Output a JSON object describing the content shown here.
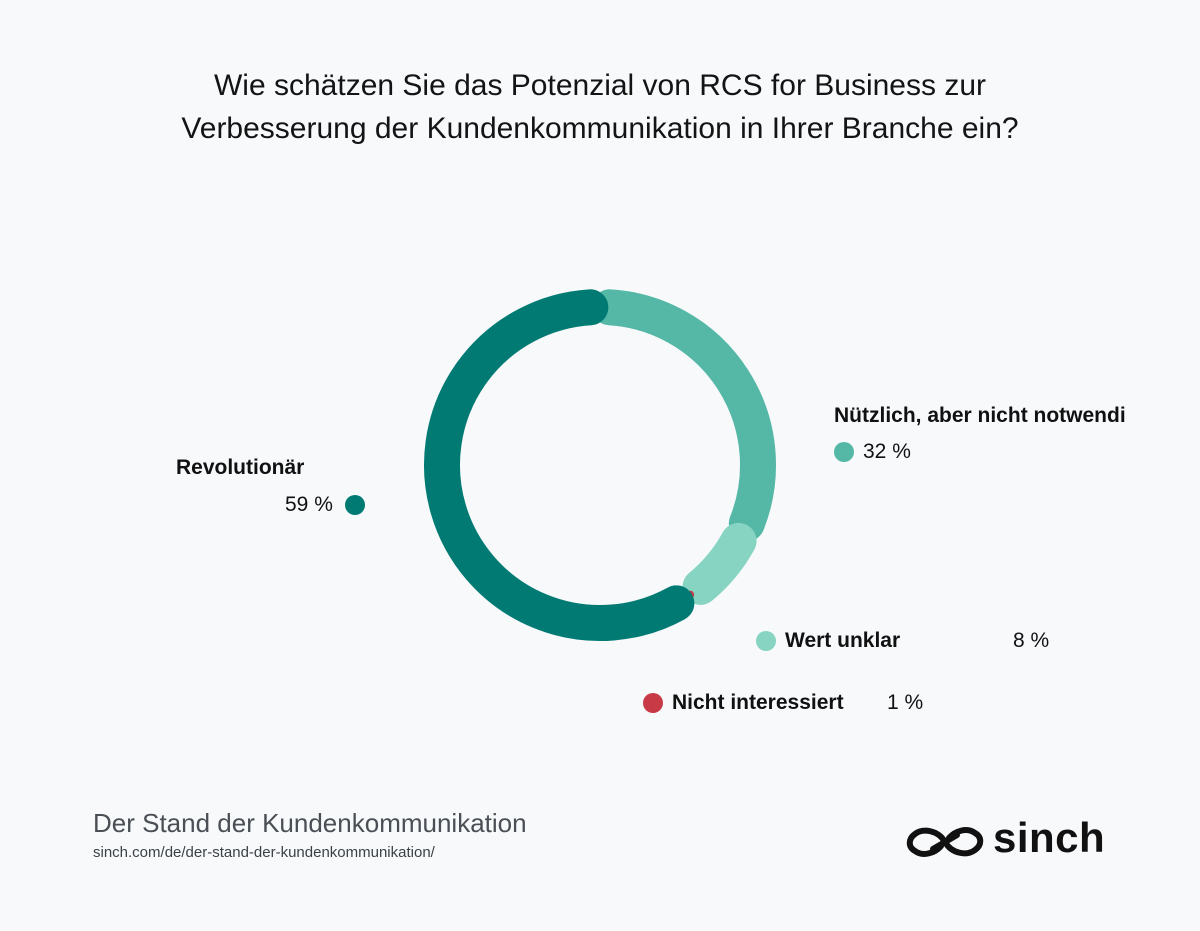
{
  "title": "Wie schätzen Sie das Potenzial von RCS for Business zur Verbesserung der Kundenkommunikation in Ihrer Branche ein?",
  "colors": {
    "background": "#f7f9fb",
    "revolutionaer": "#007a73",
    "nuetzlich": "#55b8a6",
    "wert_unklar": "#86d4c1",
    "nicht_interessiert": "#c73a46"
  },
  "chart_data": {
    "type": "pie",
    "variant": "donut",
    "title": "Wie schätzen Sie das Potenzial von RCS for Business zur Verbesserung der Kundenkommunikation in Ihrer Branche ein?",
    "categories": [
      "Revolutionär",
      "Nützlich, aber nicht notwendi",
      "Wert unklar",
      "Nicht interessiert"
    ],
    "values": [
      59,
      32,
      8,
      1
    ],
    "labels": [
      "59 %",
      "32 %",
      "8 %",
      "1 %"
    ],
    "colors": [
      "#007a73",
      "#55b8a6",
      "#86d4c1",
      "#c73a46"
    ]
  },
  "footer": {
    "report_title": "Der Stand der Kundenkommunikation",
    "url": "sinch.com/de/der-stand-der-kundenkommunikation/"
  },
  "logo": {
    "text": "sinch",
    "icon": "infinity-link-icon"
  }
}
